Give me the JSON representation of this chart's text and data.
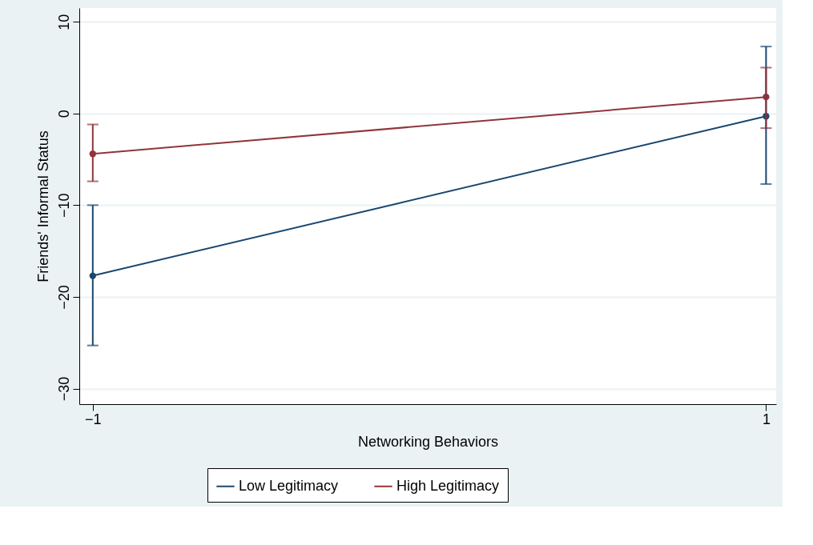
{
  "chart_data": {
    "type": "line",
    "xlabel": "Networking Behaviors",
    "ylabel": "Friends' Informal Status",
    "x": [
      -1,
      1
    ],
    "xlim": [
      -1.04,
      1.03
    ],
    "xticks": [
      -1,
      1
    ],
    "ylim": [
      -31.7,
      11.5
    ],
    "yticks": [
      -30,
      -20,
      -10,
      0,
      10
    ],
    "grid": "y",
    "legend": "bottom",
    "marker": "circle",
    "line_style": "solid",
    "series": [
      {
        "name": "Low Legitimacy",
        "color": "#1a476f",
        "values": [
          -17.7,
          -0.3
        ],
        "errors": [
          [
            -25.3,
            -10.0
          ],
          [
            -7.7,
            7.3
          ]
        ]
      },
      {
        "name": "High Legitimacy",
        "color": "#90353b",
        "values": [
          -4.4,
          1.8
        ],
        "errors": [
          [
            -7.4,
            -1.2
          ],
          [
            -1.6,
            5.0
          ]
        ]
      }
    ]
  }
}
